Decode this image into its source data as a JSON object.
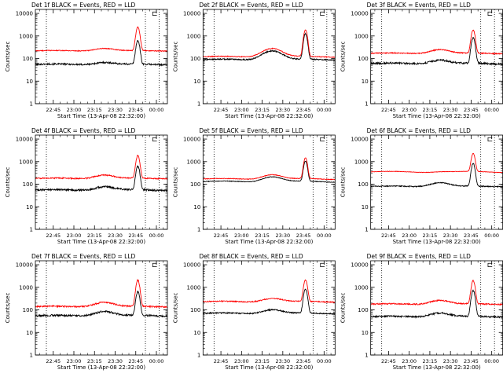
{
  "colors": {
    "background": "#ffffff",
    "axes": "#000000",
    "events": "#000000",
    "lld": "#ff0000"
  },
  "shared": {
    "xlabel": "Start Time (13-Apr-08 22:32:00)",
    "ylabel": "Counts/sec",
    "start_time": "13-Apr-08 22:32:00",
    "x_unit": "minutes after start time",
    "xlim": [
      0,
      96
    ],
    "ylim": [
      1,
      15000
    ],
    "yscale": "log",
    "xticks": [
      {
        "x": 13,
        "label": "22:45"
      },
      {
        "x": 28,
        "label": "23:00"
      },
      {
        "x": 43,
        "label": "23:15"
      },
      {
        "x": 58,
        "label": "23:30"
      },
      {
        "x": 73,
        "label": "23:45"
      },
      {
        "x": 88,
        "label": "00:00"
      }
    ],
    "yticks": [
      {
        "y": 1,
        "label": "1"
      },
      {
        "y": 10,
        "label": "10"
      },
      {
        "y": 100,
        "label": "100"
      },
      {
        "y": 1000,
        "label": "1000"
      },
      {
        "y": 10000,
        "label": "10000"
      }
    ],
    "vlines_minutes": [
      8,
      80,
      90
    ],
    "legend_marker": "⊏"
  },
  "chart_data": [
    {
      "type": "line",
      "title": "Det 1f BLACK = Events, RED = LLD",
      "series": [
        {
          "color": "#000000",
          "base": 55,
          "bump": 1.25,
          "peak": 600,
          "smooth": 0.04,
          "noise": 0.08
        },
        {
          "color": "#ff0000",
          "base": 220,
          "bump": 1.3,
          "peak": 2400,
          "smooth": 0.03,
          "noise": 0.04
        }
      ]
    },
    {
      "type": "line",
      "title": "Det 2f BLACK = Events, RED = LLD",
      "series": [
        {
          "color": "#000000",
          "base": 90,
          "bump": 2.5,
          "peak": 1200,
          "smooth": 0.05,
          "noise": 0.06
        },
        {
          "color": "#ff0000",
          "base": 120,
          "bump": 2.4,
          "peak": 1800,
          "smooth": 0.05,
          "noise": 0.04
        }
      ]
    },
    {
      "type": "line",
      "title": "Det 3f BLACK = Events, RED = LLD",
      "series": [
        {
          "color": "#000000",
          "base": 60,
          "bump": 1.45,
          "peak": 800,
          "smooth": 0.05,
          "noise": 0.09
        },
        {
          "color": "#ff0000",
          "base": 170,
          "bump": 1.5,
          "peak": 1800,
          "smooth": 0.04,
          "noise": 0.05
        }
      ]
    },
    {
      "type": "line",
      "title": "Det 4f BLACK = Events, RED = LLD",
      "series": [
        {
          "color": "#000000",
          "base": 55,
          "bump": 1.45,
          "peak": 600,
          "smooth": 0.05,
          "noise": 0.09
        },
        {
          "color": "#ff0000",
          "base": 180,
          "bump": 1.45,
          "peak": 1800,
          "smooth": 0.04,
          "noise": 0.06
        }
      ]
    },
    {
      "type": "line",
      "title": "Det 5f BLACK = Events, RED = LLD",
      "series": [
        {
          "color": "#000000",
          "base": 130,
          "bump": 1.7,
          "peak": 1000,
          "smooth": 0.06,
          "noise": 0.03
        },
        {
          "color": "#ff0000",
          "base": 170,
          "bump": 1.6,
          "peak": 1400,
          "smooth": 0.05,
          "noise": 0.03
        }
      ]
    },
    {
      "type": "line",
      "title": "Det 6f BLACK = Events, RED = LLD",
      "series": [
        {
          "color": "#000000",
          "base": 80,
          "bump": 1.5,
          "peak": 800,
          "smooth": 0.04,
          "noise": 0.05
        },
        {
          "color": "#ff0000",
          "base": 350,
          "bump": 1.05,
          "peak": 2200,
          "smooth": 0.06,
          "noise": 0.02
        }
      ]
    },
    {
      "type": "line",
      "title": "Det 7f BLACK = Events, RED = LLD",
      "series": [
        {
          "color": "#000000",
          "base": 55,
          "bump": 1.6,
          "peak": 600,
          "smooth": 0.05,
          "noise": 0.09
        },
        {
          "color": "#ff0000",
          "base": 140,
          "bump": 1.6,
          "peak": 2000,
          "smooth": 0.04,
          "noise": 0.07
        }
      ]
    },
    {
      "type": "line",
      "title": "Det 8f BLACK = Events, RED = LLD",
      "series": [
        {
          "color": "#000000",
          "base": 70,
          "bump": 1.5,
          "peak": 800,
          "smooth": 0.05,
          "noise": 0.06
        },
        {
          "color": "#ff0000",
          "base": 230,
          "bump": 1.45,
          "peak": 2000,
          "smooth": 0.05,
          "noise": 0.05
        }
      ]
    },
    {
      "type": "line",
      "title": "Det 9f BLACK = Events, RED = LLD",
      "series": [
        {
          "color": "#000000",
          "base": 50,
          "bump": 1.5,
          "peak": 700,
          "smooth": 0.05,
          "noise": 0.08
        },
        {
          "color": "#ff0000",
          "base": 180,
          "bump": 1.5,
          "peak": 1900,
          "smooth": 0.04,
          "noise": 0.06
        }
      ]
    }
  ]
}
